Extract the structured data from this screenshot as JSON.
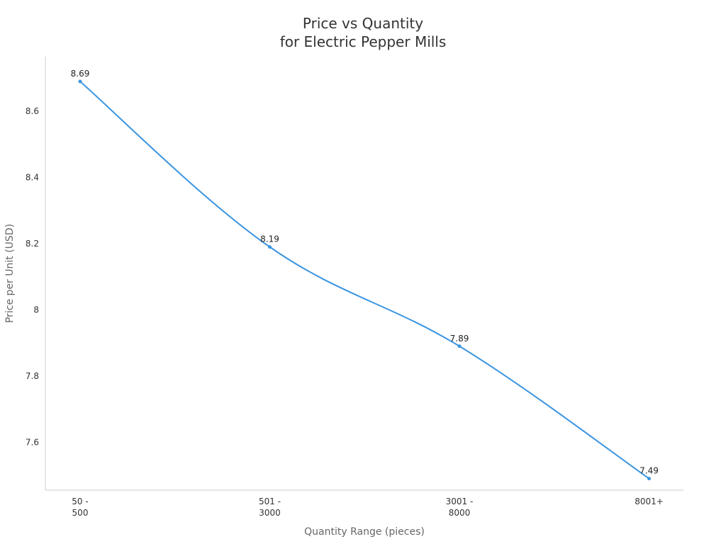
{
  "chart_data": {
    "type": "line",
    "title_lines": [
      "Price vs Quantity",
      "for Electric Pepper Mills"
    ],
    "xlabel": "Quantity Range (pieces)",
    "ylabel": "Price per Unit (USD)",
    "categories": [
      [
        "50 -",
        "500"
      ],
      [
        "501 -",
        "3000"
      ],
      [
        "3001 -",
        "8000"
      ],
      [
        "8001+"
      ]
    ],
    "series": [
      {
        "values": [
          8.69,
          8.19,
          7.89,
          7.49
        ],
        "value_labels": [
          "8.69",
          "8.19",
          "7.89",
          "7.49"
        ],
        "color": "#3b95e0"
      }
    ],
    "y_ticks": [
      {
        "value": 7.6,
        "label": "7.6"
      },
      {
        "value": 7.8,
        "label": "7.8"
      },
      {
        "value": 8.0,
        "label": "8"
      },
      {
        "value": 8.2,
        "label": "8.2"
      },
      {
        "value": 8.4,
        "label": "8.4"
      },
      {
        "value": 8.6,
        "label": "8.6"
      }
    ],
    "ylim": [
      7.455,
      8.765
    ],
    "grid": false,
    "legend": "none"
  }
}
